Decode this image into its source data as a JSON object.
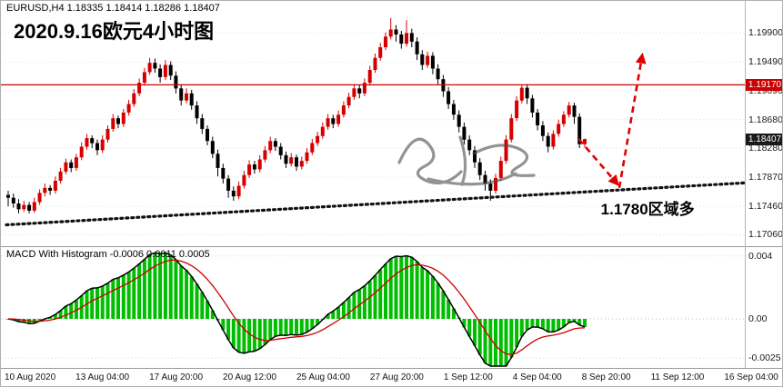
{
  "window": {
    "symbol_info": "EURUSD,H4 1.18335 1.18414 1.18286 1.18407",
    "title_overlay": "2020.9.16欧元4小时图"
  },
  "chart_data": {
    "type": "candlestick",
    "symbol": "EURUSD",
    "timeframe": "H4",
    "ohlc_label": {
      "open": "1.18335",
      "high": "1.18414",
      "low": "1.18286",
      "close": "1.18407"
    },
    "colors": {
      "up": "#d40000",
      "down": "#000000",
      "arrow": "#e00000",
      "hline": "#cc0000",
      "hist": "#00be00",
      "macd_line": "#000000",
      "signal_line": "#cc0000"
    },
    "price_axis": {
      "labels": [
        "1.19900",
        "1.19490",
        "1.19090",
        "1.18680",
        "1.18280",
        "1.17870",
        "1.17460",
        "1.17060"
      ],
      "min": 1.1695,
      "max": 1.2025
    },
    "time_axis": [
      "10 Aug 2020",
      "13 Aug 04:00",
      "17 Aug 20:00",
      "20 Aug 12:00",
      "25 Aug 04:00",
      "27 Aug 20:00",
      "1 Sep 12:00",
      "4 Sep 04:00",
      "8 Sep 20:00",
      "11 Sep 12:00",
      "16 Sep 04:00"
    ],
    "horizontal_line": {
      "price": 1.1917,
      "label": "1.19170"
    },
    "current_price": {
      "price": 1.18407,
      "label": "1.18407"
    },
    "trendline": {
      "p1": 1.172,
      "p2": 1.1779
    },
    "arrows": [
      {
        "from_frac": 0.775,
        "from_price": 1.1841,
        "to_frac": 0.827,
        "to_price": 1.1778
      },
      {
        "from_frac": 0.83,
        "from_price": 1.1772,
        "to_frac": 0.861,
        "to_price": 1.1958
      }
    ],
    "annotation": {
      "text": "1.1780区域多",
      "x_frac": 0.805,
      "price": 1.1748
    },
    "macd": {
      "label": "MACD With Histogram",
      "values_text": "-0.0006 0.0011 0.0005",
      "axis_labels": [
        "0.004",
        "0.00",
        "-0.0025"
      ],
      "axis_values": [
        0.004,
        0,
        -0.0025
      ],
      "range": {
        "max": 0.0045,
        "min": -0.003
      }
    },
    "candles": [
      [
        1.1762,
        1.1768,
        1.1746,
        1.1758
      ],
      [
        1.1758,
        1.1764,
        1.1744,
        1.175
      ],
      [
        1.175,
        1.1756,
        1.1736,
        1.1742
      ],
      [
        1.1742,
        1.1754,
        1.1738,
        1.1748
      ],
      [
        1.1748,
        1.1752,
        1.1736,
        1.174
      ],
      [
        1.174,
        1.1758,
        1.1737,
        1.1752
      ],
      [
        1.1752,
        1.177,
        1.1748,
        1.1765
      ],
      [
        1.1765,
        1.1778,
        1.176,
        1.1772
      ],
      [
        1.1772,
        1.1776,
        1.1762,
        1.1768
      ],
      [
        1.1768,
        1.1788,
        1.1764,
        1.1782
      ],
      [
        1.1782,
        1.18,
        1.1778,
        1.1795
      ],
      [
        1.1795,
        1.1813,
        1.1791,
        1.1808
      ],
      [
        1.1808,
        1.1812,
        1.1794,
        1.18
      ],
      [
        1.18,
        1.182,
        1.1796,
        1.1815
      ],
      [
        1.1815,
        1.1836,
        1.1811,
        1.183
      ],
      [
        1.183,
        1.1848,
        1.1826,
        1.1842
      ],
      [
        1.1842,
        1.1846,
        1.1828,
        1.1835
      ],
      [
        1.1835,
        1.184,
        1.1818,
        1.1825
      ],
      [
        1.1825,
        1.1846,
        1.1821,
        1.184
      ],
      [
        1.184,
        1.186,
        1.1836,
        1.1855
      ],
      [
        1.1855,
        1.1876,
        1.1851,
        1.187
      ],
      [
        1.187,
        1.1874,
        1.1856,
        1.1862
      ],
      [
        1.1862,
        1.1883,
        1.1858,
        1.1878
      ],
      [
        1.1878,
        1.1896,
        1.1874,
        1.189
      ],
      [
        1.189,
        1.1911,
        1.1886,
        1.1905
      ],
      [
        1.1905,
        1.1926,
        1.1901,
        1.192
      ],
      [
        1.192,
        1.1941,
        1.1916,
        1.1935
      ],
      [
        1.1935,
        1.1955,
        1.1931,
        1.1948
      ],
      [
        1.1948,
        1.1954,
        1.1934,
        1.194
      ],
      [
        1.194,
        1.1946,
        1.192,
        1.1928
      ],
      [
        1.1928,
        1.1952,
        1.1924,
        1.1945
      ],
      [
        1.1945,
        1.195,
        1.1924,
        1.193
      ],
      [
        1.193,
        1.1936,
        1.1905,
        1.1912
      ],
      [
        1.1912,
        1.1918,
        1.1888,
        1.1895
      ],
      [
        1.1895,
        1.1912,
        1.1891,
        1.1905
      ],
      [
        1.1905,
        1.191,
        1.1882,
        1.1888
      ],
      [
        1.1888,
        1.1894,
        1.1862,
        1.187
      ],
      [
        1.187,
        1.1876,
        1.1848,
        1.1855
      ],
      [
        1.1855,
        1.186,
        1.1832,
        1.1838
      ],
      [
        1.1838,
        1.1844,
        1.1814,
        1.182
      ],
      [
        1.182,
        1.1826,
        1.1788,
        1.18
      ],
      [
        1.18,
        1.1806,
        1.1778,
        1.1785
      ],
      [
        1.1785,
        1.179,
        1.1758,
        1.1768
      ],
      [
        1.1768,
        1.1774,
        1.1754,
        1.176
      ],
      [
        1.176,
        1.1781,
        1.1756,
        1.1775
      ],
      [
        1.1775,
        1.1796,
        1.1771,
        1.179
      ],
      [
        1.179,
        1.1811,
        1.1786,
        1.1805
      ],
      [
        1.1805,
        1.181,
        1.1792,
        1.1798
      ],
      [
        1.1798,
        1.1818,
        1.1794,
        1.1812
      ],
      [
        1.1812,
        1.1831,
        1.1808,
        1.1825
      ],
      [
        1.1825,
        1.1844,
        1.1821,
        1.1838
      ],
      [
        1.1838,
        1.1842,
        1.1824,
        1.183
      ],
      [
        1.183,
        1.1835,
        1.1812,
        1.1818
      ],
      [
        1.1818,
        1.1823,
        1.18,
        1.1806
      ],
      [
        1.1806,
        1.1821,
        1.1802,
        1.1815
      ],
      [
        1.1815,
        1.1819,
        1.1796,
        1.1802
      ],
      [
        1.1802,
        1.1816,
        1.1798,
        1.181
      ],
      [
        1.181,
        1.1828,
        1.1806,
        1.1822
      ],
      [
        1.1822,
        1.1841,
        1.1818,
        1.1835
      ],
      [
        1.1835,
        1.1851,
        1.1831,
        1.1845
      ],
      [
        1.1845,
        1.1864,
        1.1841,
        1.1858
      ],
      [
        1.1858,
        1.1876,
        1.1854,
        1.187
      ],
      [
        1.187,
        1.1875,
        1.1856,
        1.1862
      ],
      [
        1.1862,
        1.1881,
        1.1858,
        1.1875
      ],
      [
        1.1875,
        1.1894,
        1.1871,
        1.1888
      ],
      [
        1.1888,
        1.1906,
        1.1884,
        1.19
      ],
      [
        1.19,
        1.1918,
        1.1896,
        1.1912
      ],
      [
        1.1912,
        1.1917,
        1.1898,
        1.1905
      ],
      [
        1.1905,
        1.1926,
        1.1901,
        1.192
      ],
      [
        1.192,
        1.1944,
        1.1916,
        1.1938
      ],
      [
        1.1938,
        1.1961,
        1.1934,
        1.1955
      ],
      [
        1.1955,
        1.1976,
        1.1951,
        1.197
      ],
      [
        1.197,
        1.1991,
        1.1966,
        1.1985
      ],
      [
        1.1985,
        1.2011,
        1.1981,
        1.1995
      ],
      [
        1.1995,
        1.2001,
        1.1978,
        1.1988
      ],
      [
        1.1988,
        1.1993,
        1.1968,
        1.1975
      ],
      [
        1.1975,
        1.2008,
        1.1971,
        1.199
      ],
      [
        1.199,
        1.1996,
        1.197,
        1.1978
      ],
      [
        1.1978,
        1.1984,
        1.1952,
        1.196
      ],
      [
        1.196,
        1.1966,
        1.1938,
        1.1945
      ],
      [
        1.1945,
        1.1964,
        1.1941,
        1.1958
      ],
      [
        1.1958,
        1.1963,
        1.1932,
        1.194
      ],
      [
        1.194,
        1.1946,
        1.1918,
        1.1925
      ],
      [
        1.1925,
        1.1931,
        1.19,
        1.1908
      ],
      [
        1.1908,
        1.1914,
        1.1883,
        1.189
      ],
      [
        1.189,
        1.1896,
        1.1868,
        1.1875
      ],
      [
        1.1875,
        1.1881,
        1.185,
        1.1858
      ],
      [
        1.1858,
        1.1864,
        1.1833,
        1.184
      ],
      [
        1.184,
        1.1846,
        1.1818,
        1.1825
      ],
      [
        1.1825,
        1.1831,
        1.18,
        1.1808
      ],
      [
        1.1808,
        1.1814,
        1.1783,
        1.179
      ],
      [
        1.179,
        1.1796,
        1.1768,
        1.1778
      ],
      [
        1.1778,
        1.1784,
        1.1754,
        1.1768
      ],
      [
        1.1768,
        1.1792,
        1.1764,
        1.1786
      ],
      [
        1.1786,
        1.1816,
        1.1782,
        1.181
      ],
      [
        1.181,
        1.1846,
        1.1806,
        1.184
      ],
      [
        1.184,
        1.1876,
        1.1836,
        1.187
      ],
      [
        1.187,
        1.1901,
        1.1866,
        1.1895
      ],
      [
        1.1895,
        1.1917,
        1.1891,
        1.1913
      ],
      [
        1.1913,
        1.1918,
        1.189,
        1.1898
      ],
      [
        1.1898,
        1.1903,
        1.1871,
        1.1878
      ],
      [
        1.1878,
        1.1883,
        1.1853,
        1.186
      ],
      [
        1.186,
        1.1866,
        1.1838,
        1.1845
      ],
      [
        1.1845,
        1.185,
        1.1822,
        1.183
      ],
      [
        1.183,
        1.1853,
        1.1826,
        1.1848
      ],
      [
        1.1848,
        1.1868,
        1.1844,
        1.1862
      ],
      [
        1.1862,
        1.188,
        1.1858,
        1.1875
      ],
      [
        1.1875,
        1.1893,
        1.1871,
        1.1888
      ],
      [
        1.1888,
        1.1892,
        1.1862,
        1.1872
      ],
      [
        1.1872,
        1.1877,
        1.1828,
        1.18335
      ],
      [
        1.18335,
        1.18414,
        1.18286,
        1.18407
      ]
    ]
  }
}
